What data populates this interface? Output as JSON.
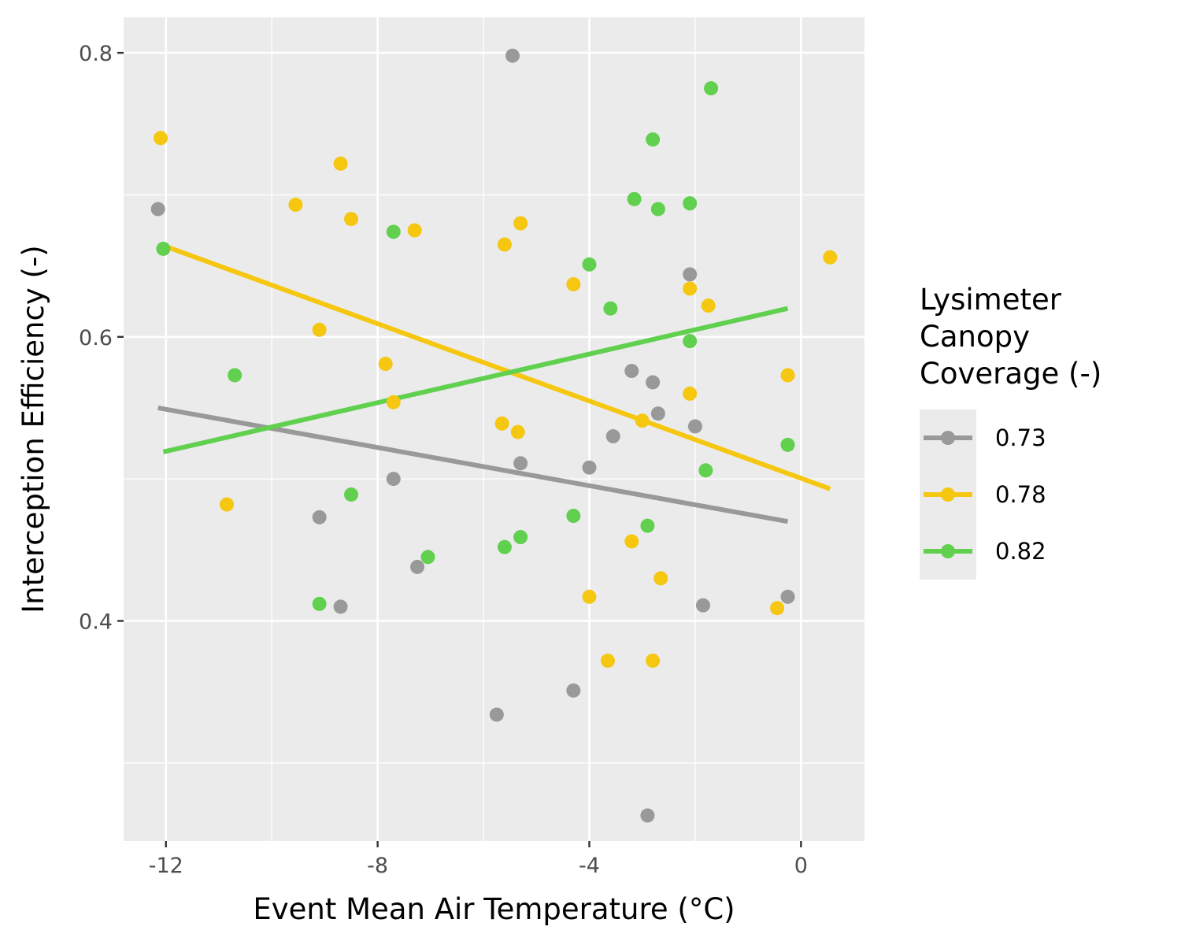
{
  "chart_data": {
    "type": "scatter",
    "xlabel": "Event Mean Air Temperature (°C)",
    "ylabel": "Interception Efficiency (-)",
    "xlim": [
      -12.8,
      1.2
    ],
    "ylim": [
      0.245,
      0.825
    ],
    "x_ticks": [
      -12,
      -8,
      -4,
      0
    ],
    "x_tick_labels": [
      "-12",
      "-8",
      "-4",
      "0"
    ],
    "x_minor": [
      -10,
      -6,
      -2
    ],
    "y_ticks": [
      0.4,
      0.6,
      0.8
    ],
    "y_tick_labels": [
      "0.4",
      "0.6",
      "0.8"
    ],
    "y_minor": [
      0.3,
      0.5,
      0.7
    ],
    "grid": true,
    "legend": {
      "title_lines": [
        "Lysimeter",
        "Canopy",
        "Coverage (-)"
      ],
      "position": "right"
    },
    "series": [
      {
        "name": "0.73",
        "color": "#999999",
        "points": [
          [
            -12.15,
            0.69
          ],
          [
            -5.45,
            0.798
          ],
          [
            -2.1,
            0.644
          ],
          [
            -3.2,
            0.576
          ],
          [
            -2.8,
            0.568
          ],
          [
            -2.7,
            0.546
          ],
          [
            -3.55,
            0.53
          ],
          [
            -2.0,
            0.537
          ],
          [
            -5.3,
            0.511
          ],
          [
            -4.0,
            0.508
          ],
          [
            -7.7,
            0.5
          ],
          [
            -9.1,
            0.473
          ],
          [
            -7.25,
            0.438
          ],
          [
            -8.7,
            0.41
          ],
          [
            -1.85,
            0.411
          ],
          [
            -0.25,
            0.417
          ],
          [
            -4.3,
            0.351
          ],
          [
            -5.75,
            0.334
          ],
          [
            -2.9,
            0.263
          ]
        ],
        "trend": [
          [
            -12.15,
            0.55
          ],
          [
            -0.25,
            0.47
          ]
        ]
      },
      {
        "name": "0.78",
        "color": "#F5C710",
        "points": [
          [
            -12.1,
            0.74
          ],
          [
            -8.7,
            0.722
          ],
          [
            -9.55,
            0.693
          ],
          [
            -8.5,
            0.683
          ],
          [
            -7.3,
            0.675
          ],
          [
            -5.3,
            0.68
          ],
          [
            -5.6,
            0.665
          ],
          [
            0.55,
            0.656
          ],
          [
            -4.3,
            0.637
          ],
          [
            -2.1,
            0.634
          ],
          [
            -1.75,
            0.622
          ],
          [
            -9.1,
            0.605
          ],
          [
            -7.85,
            0.581
          ],
          [
            -0.25,
            0.573
          ],
          [
            -2.1,
            0.56
          ],
          [
            -7.7,
            0.554
          ],
          [
            -5.65,
            0.539
          ],
          [
            -5.35,
            0.533
          ],
          [
            -3.0,
            0.541
          ],
          [
            -10.85,
            0.482
          ],
          [
            -3.2,
            0.456
          ],
          [
            -2.65,
            0.43
          ],
          [
            -4.0,
            0.417
          ],
          [
            -0.45,
            0.409
          ],
          [
            -3.65,
            0.372
          ],
          [
            -2.8,
            0.372
          ]
        ],
        "trend": [
          [
            -12.1,
            0.665
          ],
          [
            0.55,
            0.493
          ]
        ]
      },
      {
        "name": "0.82",
        "color": "#61D04F",
        "points": [
          [
            -1.7,
            0.775
          ],
          [
            -2.8,
            0.739
          ],
          [
            -3.15,
            0.697
          ],
          [
            -2.1,
            0.694
          ],
          [
            -2.7,
            0.69
          ],
          [
            -7.7,
            0.674
          ],
          [
            -12.05,
            0.662
          ],
          [
            -4.0,
            0.651
          ],
          [
            -3.6,
            0.62
          ],
          [
            -2.1,
            0.597
          ],
          [
            -10.7,
            0.573
          ],
          [
            -0.25,
            0.524
          ],
          [
            -1.8,
            0.506
          ],
          [
            -8.5,
            0.489
          ],
          [
            -4.3,
            0.474
          ],
          [
            -2.9,
            0.467
          ],
          [
            -5.3,
            0.459
          ],
          [
            -5.6,
            0.452
          ],
          [
            -7.05,
            0.445
          ],
          [
            -9.1,
            0.412
          ]
        ],
        "trend": [
          [
            -12.05,
            0.519
          ],
          [
            -0.25,
            0.62
          ]
        ]
      }
    ]
  }
}
